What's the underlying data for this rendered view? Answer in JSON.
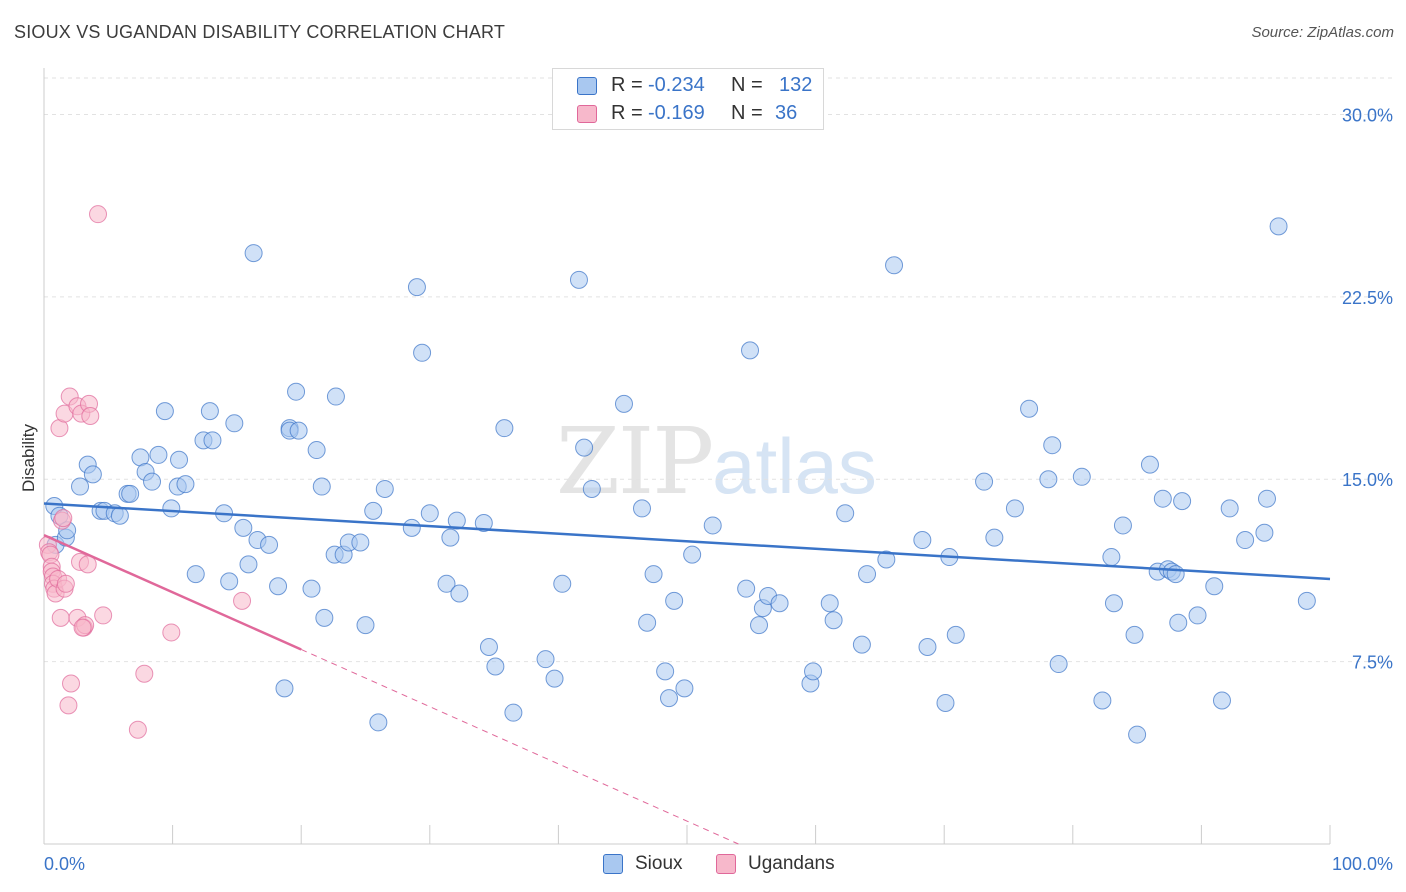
{
  "header": {
    "title": "SIOUX VS UGANDAN DISABILITY CORRELATION CHART",
    "source": "Source: ZipAtlas.com"
  },
  "watermark": {
    "zip": "ZIP",
    "atlas": "atlas"
  },
  "legend_top": {
    "rows": [
      {
        "r_label": "R =",
        "r_value": "-0.234",
        "n_label": "N =",
        "n_value": "132",
        "color": "#a9c8f0"
      },
      {
        "r_label": "R =",
        "r_value": "-0.169",
        "n_label": "N =",
        "n_value": "36",
        "color": "#f7b8cb"
      }
    ]
  },
  "legend_bottom": {
    "items": [
      {
        "label": "Sioux",
        "color": "#a9c8f0"
      },
      {
        "label": "Ugandans",
        "color": "#f7b8cb"
      }
    ]
  },
  "chart_data": {
    "type": "scatter",
    "title": "SIOUX VS UGANDAN DISABILITY CORRELATION CHART",
    "xlabel": "",
    "ylabel": "Disability",
    "xlim": [
      0,
      100
    ],
    "ylim": [
      0,
      31.5
    ],
    "x_tick_labels": [
      "0.0%",
      "100.0%"
    ],
    "y_ticks": [
      7.5,
      15.0,
      22.5,
      30.0
    ],
    "y_tick_labels": [
      "7.5%",
      "15.0%",
      "22.5%",
      "30.0%"
    ],
    "grid": true,
    "legend_position": "top-center",
    "colors": {
      "sioux": "#3a74c8",
      "ugandans": "#e0689a",
      "sioux_fill": "#a9c8f0",
      "ugandans_fill": "#f7b8cb"
    },
    "series": [
      {
        "name": "Sioux",
        "trend": {
          "x": [
            0,
            100
          ],
          "y": [
            14.0,
            10.9
          ],
          "dashed_to": null
        },
        "points": [
          [
            0.8,
            13.9
          ],
          [
            0.9,
            12.3
          ],
          [
            1.2,
            13.5
          ],
          [
            1.7,
            12.6
          ],
          [
            1.8,
            12.9
          ],
          [
            2.8,
            14.7
          ],
          [
            3.4,
            15.6
          ],
          [
            3.8,
            15.2
          ],
          [
            4.4,
            13.7
          ],
          [
            4.7,
            13.7
          ],
          [
            5.5,
            13.6
          ],
          [
            5.9,
            13.5
          ],
          [
            6.5,
            14.4
          ],
          [
            6.7,
            14.4
          ],
          [
            7.5,
            15.9
          ],
          [
            7.9,
            15.3
          ],
          [
            8.4,
            14.9
          ],
          [
            8.9,
            16.0
          ],
          [
            9.4,
            17.8
          ],
          [
            9.9,
            13.8
          ],
          [
            10.4,
            14.7
          ],
          [
            10.5,
            15.8
          ],
          [
            11.0,
            14.8
          ],
          [
            11.8,
            11.1
          ],
          [
            12.4,
            16.6
          ],
          [
            12.9,
            17.8
          ],
          [
            13.1,
            16.6
          ],
          [
            14.0,
            13.6
          ],
          [
            14.4,
            10.8
          ],
          [
            14.8,
            17.3
          ],
          [
            15.5,
            13.0
          ],
          [
            15.9,
            11.5
          ],
          [
            16.3,
            24.3
          ],
          [
            16.6,
            12.5
          ],
          [
            17.5,
            12.3
          ],
          [
            18.2,
            10.6
          ],
          [
            18.7,
            6.4
          ],
          [
            19.1,
            17.1
          ],
          [
            19.1,
            17.0
          ],
          [
            19.6,
            18.6
          ],
          [
            19.8,
            17.0
          ],
          [
            20.8,
            10.5
          ],
          [
            21.2,
            16.2
          ],
          [
            21.6,
            14.7
          ],
          [
            21.8,
            9.3
          ],
          [
            22.6,
            11.9
          ],
          [
            22.7,
            18.4
          ],
          [
            23.3,
            11.9
          ],
          [
            23.7,
            12.4
          ],
          [
            24.6,
            12.4
          ],
          [
            25.0,
            9.0
          ],
          [
            25.6,
            13.7
          ],
          [
            26.0,
            5.0
          ],
          [
            26.5,
            14.6
          ],
          [
            28.6,
            13.0
          ],
          [
            29.0,
            22.9
          ],
          [
            29.4,
            20.2
          ],
          [
            30.0,
            13.6
          ],
          [
            31.3,
            10.7
          ],
          [
            31.6,
            12.6
          ],
          [
            32.1,
            13.3
          ],
          [
            32.3,
            10.3
          ],
          [
            34.2,
            13.2
          ],
          [
            34.6,
            8.1
          ],
          [
            35.1,
            7.3
          ],
          [
            35.8,
            17.1
          ],
          [
            36.5,
            5.4
          ],
          [
            39.0,
            7.6
          ],
          [
            39.7,
            6.8
          ],
          [
            40.3,
            10.7
          ],
          [
            41.6,
            23.2
          ],
          [
            42.0,
            16.3
          ],
          [
            42.6,
            14.6
          ],
          [
            45.1,
            18.1
          ],
          [
            46.5,
            13.8
          ],
          [
            46.9,
            9.1
          ],
          [
            47.4,
            11.1
          ],
          [
            48.3,
            7.1
          ],
          [
            48.6,
            6.0
          ],
          [
            49.0,
            10.0
          ],
          [
            49.8,
            6.4
          ],
          [
            50.4,
            11.9
          ],
          [
            52.0,
            13.1
          ],
          [
            54.6,
            10.5
          ],
          [
            54.9,
            20.3
          ],
          [
            55.6,
            9.0
          ],
          [
            55.9,
            9.7
          ],
          [
            56.3,
            10.2
          ],
          [
            57.2,
            9.9
          ],
          [
            59.6,
            6.6
          ],
          [
            59.8,
            7.1
          ],
          [
            61.1,
            9.9
          ],
          [
            61.4,
            9.2
          ],
          [
            62.3,
            13.6
          ],
          [
            63.6,
            8.2
          ],
          [
            64.0,
            11.1
          ],
          [
            65.5,
            11.7
          ],
          [
            66.1,
            23.8
          ],
          [
            68.3,
            12.5
          ],
          [
            68.7,
            8.1
          ],
          [
            70.1,
            5.8
          ],
          [
            70.4,
            11.8
          ],
          [
            70.9,
            8.6
          ],
          [
            73.1,
            14.9
          ],
          [
            73.9,
            12.6
          ],
          [
            75.5,
            13.8
          ],
          [
            76.6,
            17.9
          ],
          [
            78.1,
            15.0
          ],
          [
            78.4,
            16.4
          ],
          [
            78.9,
            7.4
          ],
          [
            80.7,
            15.1
          ],
          [
            82.3,
            5.9
          ],
          [
            83.0,
            11.8
          ],
          [
            83.2,
            9.9
          ],
          [
            83.9,
            13.1
          ],
          [
            84.8,
            8.6
          ],
          [
            85.0,
            4.5
          ],
          [
            86.0,
            15.6
          ],
          [
            86.6,
            11.2
          ],
          [
            87.0,
            14.2
          ],
          [
            87.4,
            11.3
          ],
          [
            87.7,
            11.2
          ],
          [
            88.2,
            9.1
          ],
          [
            88.5,
            14.1
          ],
          [
            89.7,
            9.4
          ],
          [
            91.0,
            10.6
          ],
          [
            91.6,
            5.9
          ],
          [
            92.2,
            13.8
          ],
          [
            93.4,
            12.5
          ],
          [
            94.9,
            12.8
          ],
          [
            95.1,
            14.2
          ],
          [
            96.0,
            25.4
          ],
          [
            98.2,
            10.0
          ],
          [
            88.0,
            11.1
          ]
        ]
      },
      {
        "name": "Ugandans",
        "trend": {
          "x": [
            0,
            20
          ],
          "y": [
            12.7,
            8.0
          ],
          "dashed_to": [
            54,
            0
          ]
        },
        "points": [
          [
            0.3,
            12.3
          ],
          [
            0.4,
            12.0
          ],
          [
            0.5,
            11.9
          ],
          [
            0.6,
            11.4
          ],
          [
            0.6,
            11.2
          ],
          [
            0.7,
            11.0
          ],
          [
            0.7,
            10.7
          ],
          [
            0.8,
            10.5
          ],
          [
            0.9,
            10.3
          ],
          [
            1.1,
            10.9
          ],
          [
            1.2,
            17.1
          ],
          [
            1.3,
            9.3
          ],
          [
            1.4,
            13.3
          ],
          [
            1.5,
            13.4
          ],
          [
            1.6,
            17.7
          ],
          [
            1.6,
            10.5
          ],
          [
            1.7,
            10.7
          ],
          [
            1.9,
            5.7
          ],
          [
            2.0,
            18.4
          ],
          [
            2.1,
            6.6
          ],
          [
            2.6,
            18.0
          ],
          [
            2.6,
            9.3
          ],
          [
            2.8,
            11.6
          ],
          [
            2.9,
            17.7
          ],
          [
            3.1,
            8.9
          ],
          [
            3.2,
            9.0
          ],
          [
            3.4,
            11.5
          ],
          [
            3.5,
            18.1
          ],
          [
            3.6,
            17.6
          ],
          [
            4.2,
            25.9
          ],
          [
            4.6,
            9.4
          ],
          [
            7.3,
            4.7
          ],
          [
            7.8,
            7.0
          ],
          [
            9.9,
            8.7
          ],
          [
            15.4,
            10.0
          ],
          [
            3.0,
            8.9
          ]
        ]
      }
    ]
  }
}
